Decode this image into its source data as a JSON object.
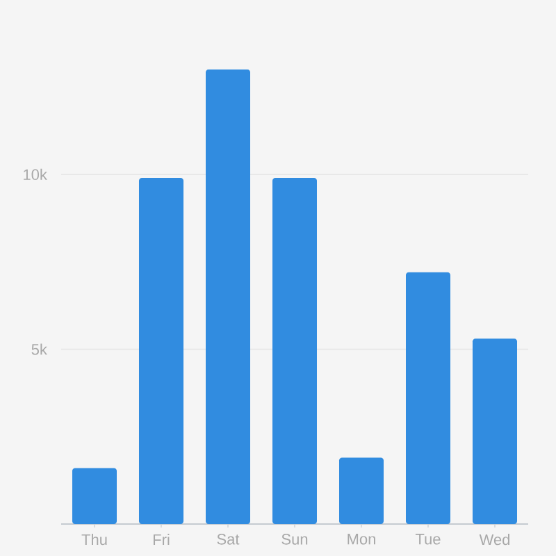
{
  "chart_data": {
    "type": "bar",
    "categories": [
      "Thu",
      "Fri",
      "Sat",
      "Sun",
      "Mon",
      "Tue",
      "Wed"
    ],
    "values": [
      1600,
      9900,
      13000,
      9900,
      1900,
      7200,
      5300
    ],
    "color": "#318ce0",
    "ylim": [
      0,
      13000
    ],
    "yticks": [
      {
        "value": 5000,
        "label": "5k"
      },
      {
        "value": 10000,
        "label": "10k"
      }
    ],
    "grid": "y"
  }
}
